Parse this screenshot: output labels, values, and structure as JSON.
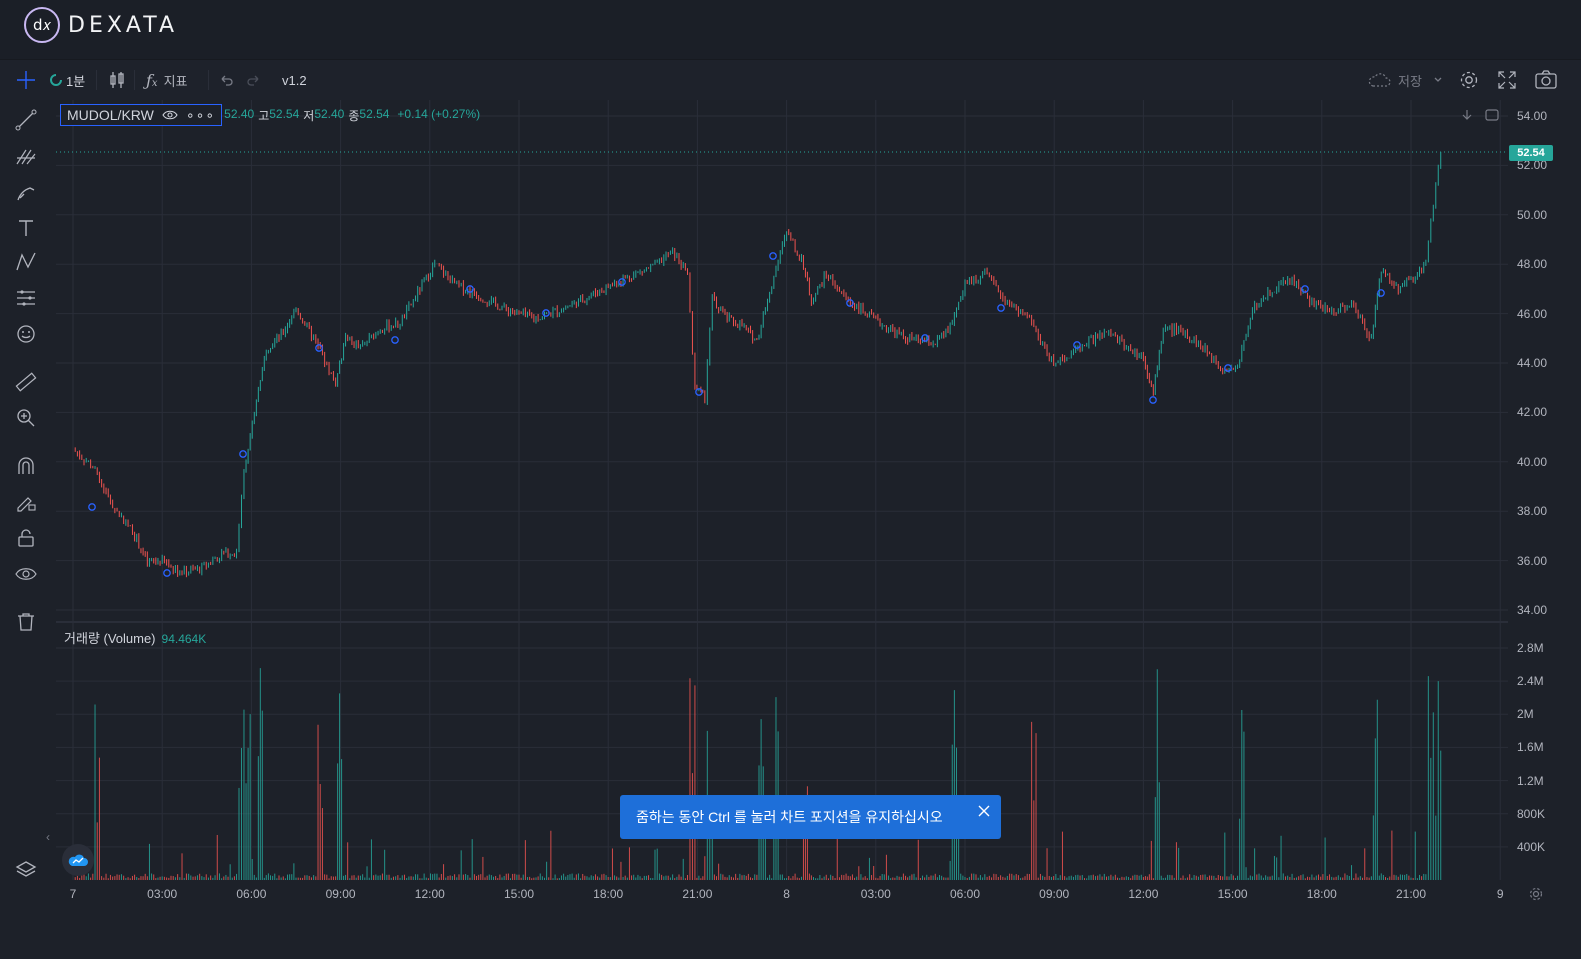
{
  "brand": {
    "logo_glyph": "d𝑥",
    "name": "DEXATA"
  },
  "toolbar": {
    "interval": "1분",
    "indicators": "지표",
    "version": "v1.2",
    "save": "저장"
  },
  "legend": {
    "symbol": "MUDOL/KRW",
    "open_value": "52.40",
    "high_label": "고",
    "high_value": "52.54",
    "low_label": "저",
    "low_value": "52.40",
    "close_label": "종",
    "close_value": "52.54",
    "change": "+0.14 (+0.27%)"
  },
  "volume_legend": {
    "label": "거래량 (Volume)",
    "value": "94.464K"
  },
  "toast": {
    "message": "줌하는 동안 Ctrl 를 눌러 차트 포지션을 유지하십시오"
  },
  "current_price_tag": "52.54",
  "price_axis_labels": [
    "54.00",
    "52.00",
    "50.00",
    "48.00",
    "46.00",
    "44.00",
    "42.00",
    "40.00",
    "38.00",
    "36.00",
    "34.00"
  ],
  "volume_axis_labels": [
    "2.8M",
    "2.4M",
    "2M",
    "1.6M",
    "1.2M",
    "800K",
    "400K"
  ],
  "time_axis_labels": [
    "7",
    "03:00",
    "06:00",
    "09:00",
    "12:00",
    "15:00",
    "18:00",
    "21:00",
    "8",
    "03:00",
    "06:00",
    "09:00",
    "12:00",
    "15:00",
    "18:00",
    "21:00",
    "9"
  ],
  "colors": {
    "up": "#26a69a",
    "down": "#ef5350",
    "accent": "#2962ff",
    "toast": "#1e6fd9",
    "background": "#1d2129"
  },
  "chart_data": {
    "type": "candlestick",
    "price_ylim": [
      34,
      54
    ],
    "price_series": [
      {
        "t": "7 00:00",
        "p": 40.5
      },
      {
        "t": "7 00:40",
        "p": 39.8
      },
      {
        "t": "7 01:20",
        "p": 38.2
      },
      {
        "t": "7 02:00",
        "p": 37.2
      },
      {
        "t": "7 02:30",
        "p": 35.9
      },
      {
        "t": "7 03:00",
        "p": 36.0
      },
      {
        "t": "7 03:40",
        "p": 35.5
      },
      {
        "t": "7 04:20",
        "p": 35.7
      },
      {
        "t": "7 05:00",
        "p": 36.3
      },
      {
        "t": "7 05:30",
        "p": 36.3
      },
      {
        "t": "7 05:45",
        "p": 39.7
      },
      {
        "t": "7 06:10",
        "p": 42.5
      },
      {
        "t": "7 06:30",
        "p": 44.6
      },
      {
        "t": "7 07:00",
        "p": 45.1
      },
      {
        "t": "7 07:30",
        "p": 46.2
      },
      {
        "t": "7 08:10",
        "p": 44.8
      },
      {
        "t": "7 08:50",
        "p": 43.2
      },
      {
        "t": "7 09:10",
        "p": 45.0
      },
      {
        "t": "7 09:40",
        "p": 44.6
      },
      {
        "t": "7 10:20",
        "p": 45.4
      },
      {
        "t": "7 11:00",
        "p": 45.6
      },
      {
        "t": "7 11:40",
        "p": 47.0
      },
      {
        "t": "7 12:10",
        "p": 48.0
      },
      {
        "t": "7 12:50",
        "p": 47.2
      },
      {
        "t": "7 13:30",
        "p": 46.8
      },
      {
        "t": "7 14:30",
        "p": 46.2
      },
      {
        "t": "7 15:30",
        "p": 45.8
      },
      {
        "t": "7 16:30",
        "p": 46.2
      },
      {
        "t": "7 17:30",
        "p": 46.8
      },
      {
        "t": "7 18:30",
        "p": 47.4
      },
      {
        "t": "7 19:30",
        "p": 47.9
      },
      {
        "t": "7 20:10",
        "p": 48.5
      },
      {
        "t": "7 20:40",
        "p": 47.6
      },
      {
        "t": "7 20:55",
        "p": 43.0
      },
      {
        "t": "7 21:15",
        "p": 42.6
      },
      {
        "t": "7 21:30",
        "p": 46.6
      },
      {
        "t": "7 22:00",
        "p": 45.8
      },
      {
        "t": "7 22:30",
        "p": 45.5
      },
      {
        "t": "7 23:00",
        "p": 44.9
      },
      {
        "t": "7 23:30",
        "p": 47.2
      },
      {
        "t": "8 00:00",
        "p": 49.3
      },
      {
        "t": "8 00:30",
        "p": 48.2
      },
      {
        "t": "8 00:50",
        "p": 46.5
      },
      {
        "t": "8 01:20",
        "p": 47.6
      },
      {
        "t": "8 02:00",
        "p": 46.6
      },
      {
        "t": "8 03:00",
        "p": 45.7
      },
      {
        "t": "8 04:00",
        "p": 45.0
      },
      {
        "t": "8 05:00",
        "p": 44.8
      },
      {
        "t": "8 05:30",
        "p": 45.4
      },
      {
        "t": "8 06:00",
        "p": 47.2
      },
      {
        "t": "8 06:40",
        "p": 47.6
      },
      {
        "t": "8 07:30",
        "p": 46.4
      },
      {
        "t": "8 08:10",
        "p": 45.8
      },
      {
        "t": "8 08:50",
        "p": 44.1
      },
      {
        "t": "8 09:30",
        "p": 44.3
      },
      {
        "t": "8 10:10",
        "p": 44.9
      },
      {
        "t": "8 10:50",
        "p": 45.2
      },
      {
        "t": "8 11:30",
        "p": 44.6
      },
      {
        "t": "8 12:00",
        "p": 44.2
      },
      {
        "t": "8 12:20",
        "p": 42.8
      },
      {
        "t": "8 12:40",
        "p": 45.4
      },
      {
        "t": "8 13:20",
        "p": 45.3
      },
      {
        "t": "8 14:00",
        "p": 44.6
      },
      {
        "t": "8 14:40",
        "p": 43.8
      },
      {
        "t": "8 15:10",
        "p": 43.8
      },
      {
        "t": "8 15:40",
        "p": 46.2
      },
      {
        "t": "8 16:20",
        "p": 47.0
      },
      {
        "t": "8 17:00",
        "p": 47.4
      },
      {
        "t": "8 17:40",
        "p": 46.4
      },
      {
        "t": "8 18:20",
        "p": 46.1
      },
      {
        "t": "8 19:00",
        "p": 46.4
      },
      {
        "t": "8 19:40",
        "p": 45.0
      },
      {
        "t": "8 20:00",
        "p": 47.8
      },
      {
        "t": "8 20:30",
        "p": 47.0
      },
      {
        "t": "8 21:00",
        "p": 47.3
      },
      {
        "t": "8 21:30",
        "p": 48.1
      },
      {
        "t": "8 21:45",
        "p": 50.5
      },
      {
        "t": "8 22:00",
        "p": 52.54
      }
    ],
    "volume_ylim": [
      0,
      2800000
    ]
  }
}
